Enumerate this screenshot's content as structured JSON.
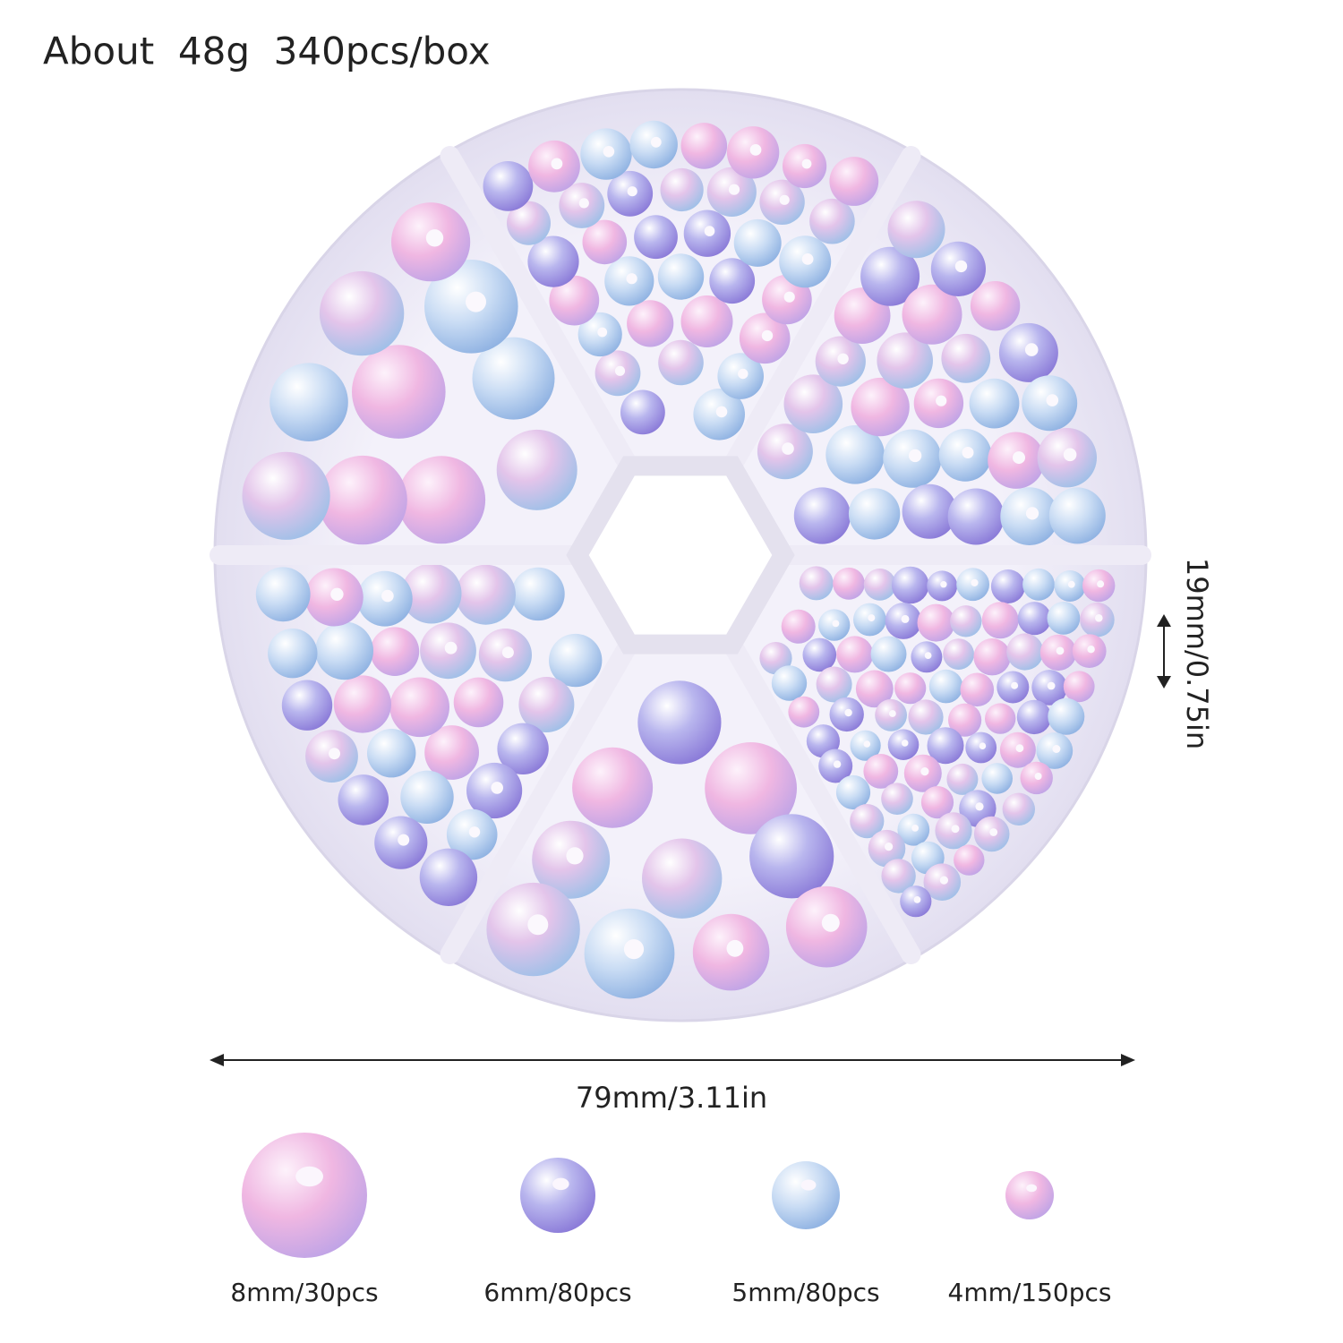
{
  "header": {
    "title": "About  48g  340pcs/box"
  },
  "dimensions": {
    "height": "19mm/0.75in",
    "diameter": "79mm/3.11in"
  },
  "beads": [
    {
      "label": "8mm/30pcs"
    },
    {
      "label": "6mm/80pcs"
    },
    {
      "label": "5mm/80pcs"
    },
    {
      "label": "4mm/150pcs"
    }
  ]
}
